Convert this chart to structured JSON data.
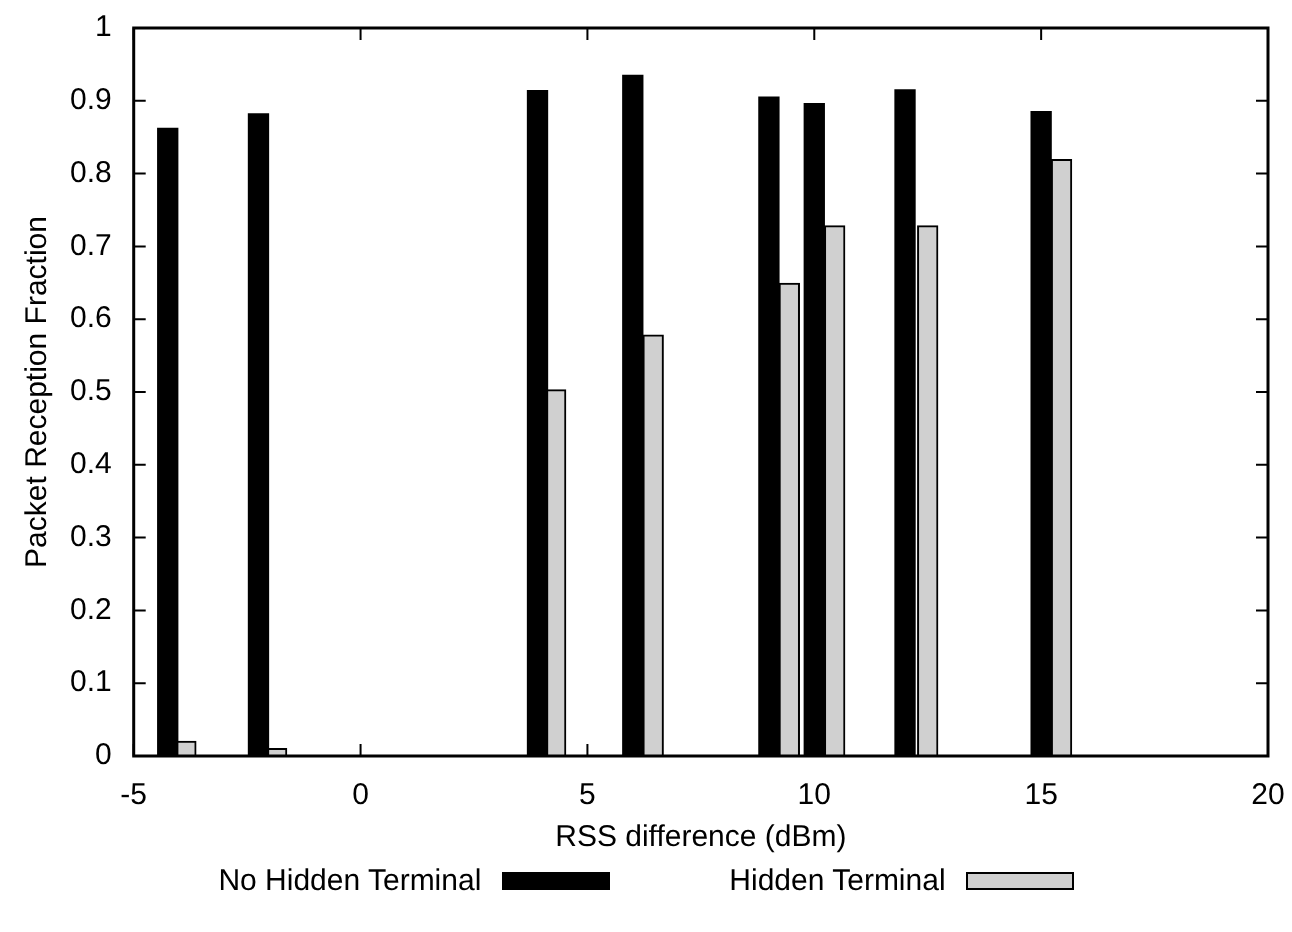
{
  "chart_data": {
    "type": "bar",
    "xlabel": "RSS difference (dBm)",
    "ylabel": "Packet Reception Fraction",
    "series": [
      {
        "name": "No Hidden Terminal",
        "color": "#000000",
        "x": [
          -4.25,
          -2.25,
          3.9,
          6,
          9,
          10,
          12,
          15
        ],
        "values": [
          0.862,
          0.882,
          0.914,
          0.935,
          0.905,
          0.896,
          0.915,
          0.885
        ]
      },
      {
        "name": "Hidden Terminal",
        "color": "#d0d0d0",
        "x": [
          -3.85,
          -1.85,
          4.3,
          6.45,
          9.45,
          10.45,
          12.5,
          15.45
        ],
        "values": [
          0.02,
          0.01,
          0.503,
          0.578,
          0.649,
          0.728,
          0.728,
          0.819
        ]
      }
    ],
    "xlim": [
      -5,
      20
    ],
    "xticks": [
      -5,
      0,
      5,
      10,
      15,
      20
    ],
    "ylim": [
      0,
      1
    ],
    "yticks": [
      0,
      0.1,
      0.2,
      0.3,
      0.4,
      0.5,
      0.6,
      0.7,
      0.8,
      0.9,
      1
    ],
    "grid": false,
    "legend": "bottom"
  }
}
